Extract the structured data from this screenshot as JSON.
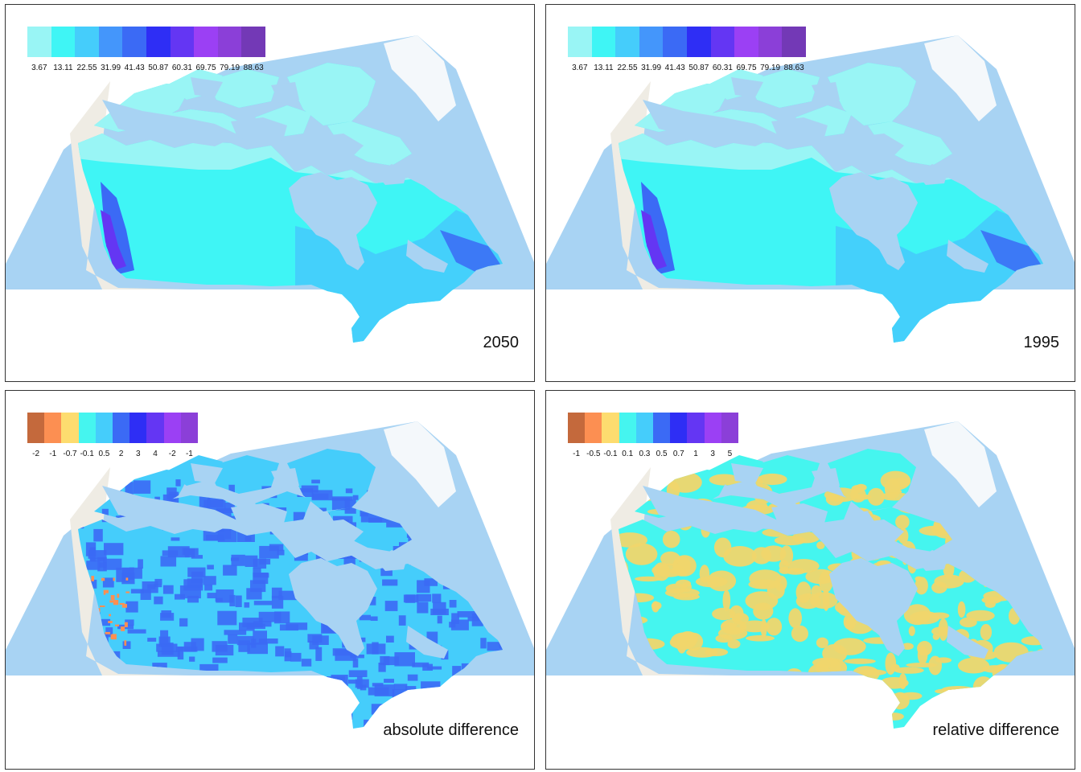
{
  "panels": [
    {
      "caption": "2050",
      "layer": "continuous",
      "legend": {
        "labels": [
          "3.67",
          "13.11",
          "22.55",
          "31.99",
          "41.43",
          "50.87",
          "60.31",
          "69.75",
          "79.19",
          "88.63"
        ],
        "colors": [
          "#99f5f5",
          "#3ff5f5",
          "#45cdfb",
          "#4496fb",
          "#3b6af5",
          "#2e2ef5",
          "#6436f3",
          "#9b40f4",
          "#8b3fd8",
          "#7339b6"
        ]
      }
    },
    {
      "caption": "1995",
      "layer": "continuous",
      "legend": {
        "labels": [
          "3.67",
          "13.11",
          "22.55",
          "31.99",
          "41.43",
          "50.87",
          "60.31",
          "69.75",
          "79.19",
          "88.63"
        ],
        "colors": [
          "#99f5f5",
          "#3ff5f5",
          "#45cdfb",
          "#4496fb",
          "#3b6af5",
          "#2e2ef5",
          "#6436f3",
          "#9b40f4",
          "#8b3fd8",
          "#7339b6"
        ]
      }
    },
    {
      "caption": "absolute difference",
      "layer": "abs",
      "legend": {
        "labels": [
          "-2",
          "-1",
          "-0.7",
          "-0.1",
          "0.5",
          "2",
          "3",
          "4",
          "-2",
          "-1"
        ],
        "colors": [
          "#c4693c",
          "#fc8f52",
          "#fddc6f",
          "#45f5ef",
          "#45cdfb",
          "#3b6af5",
          "#2e2ef5",
          "#6436f3",
          "#9b40f4",
          "#8b3fd8"
        ]
      }
    },
    {
      "caption": "relative difference",
      "layer": "rel",
      "legend": {
        "labels": [
          "-1",
          "-0.5",
          "-0.1",
          "0.1",
          "0.3",
          "0.5",
          "0.7",
          "1",
          "3",
          "5"
        ],
        "colors": [
          "#c4693c",
          "#fc8f52",
          "#fddc6f",
          "#45f5ef",
          "#45cdfb",
          "#3b6af5",
          "#2e2ef5",
          "#6436f3",
          "#9b40f4",
          "#8b3fd8"
        ]
      }
    }
  ],
  "map_colors": {
    "ocean": "#a8d3f3",
    "land_basemap": "#efece4",
    "water_overlay": "#a8d3f3",
    "arctic": "#99f5f5",
    "main": "#3ff5f5",
    "east": "#45cdfb",
    "coastal_blue": "#3b6af5",
    "coastal_purple": "#6436f3",
    "abs_base": "#45cdfb",
    "abs_blotch": "#3b6af5",
    "abs_hot": "#fc8f52",
    "rel_base": "#45f5ef",
    "rel_blotch": "#f0d66c"
  }
}
